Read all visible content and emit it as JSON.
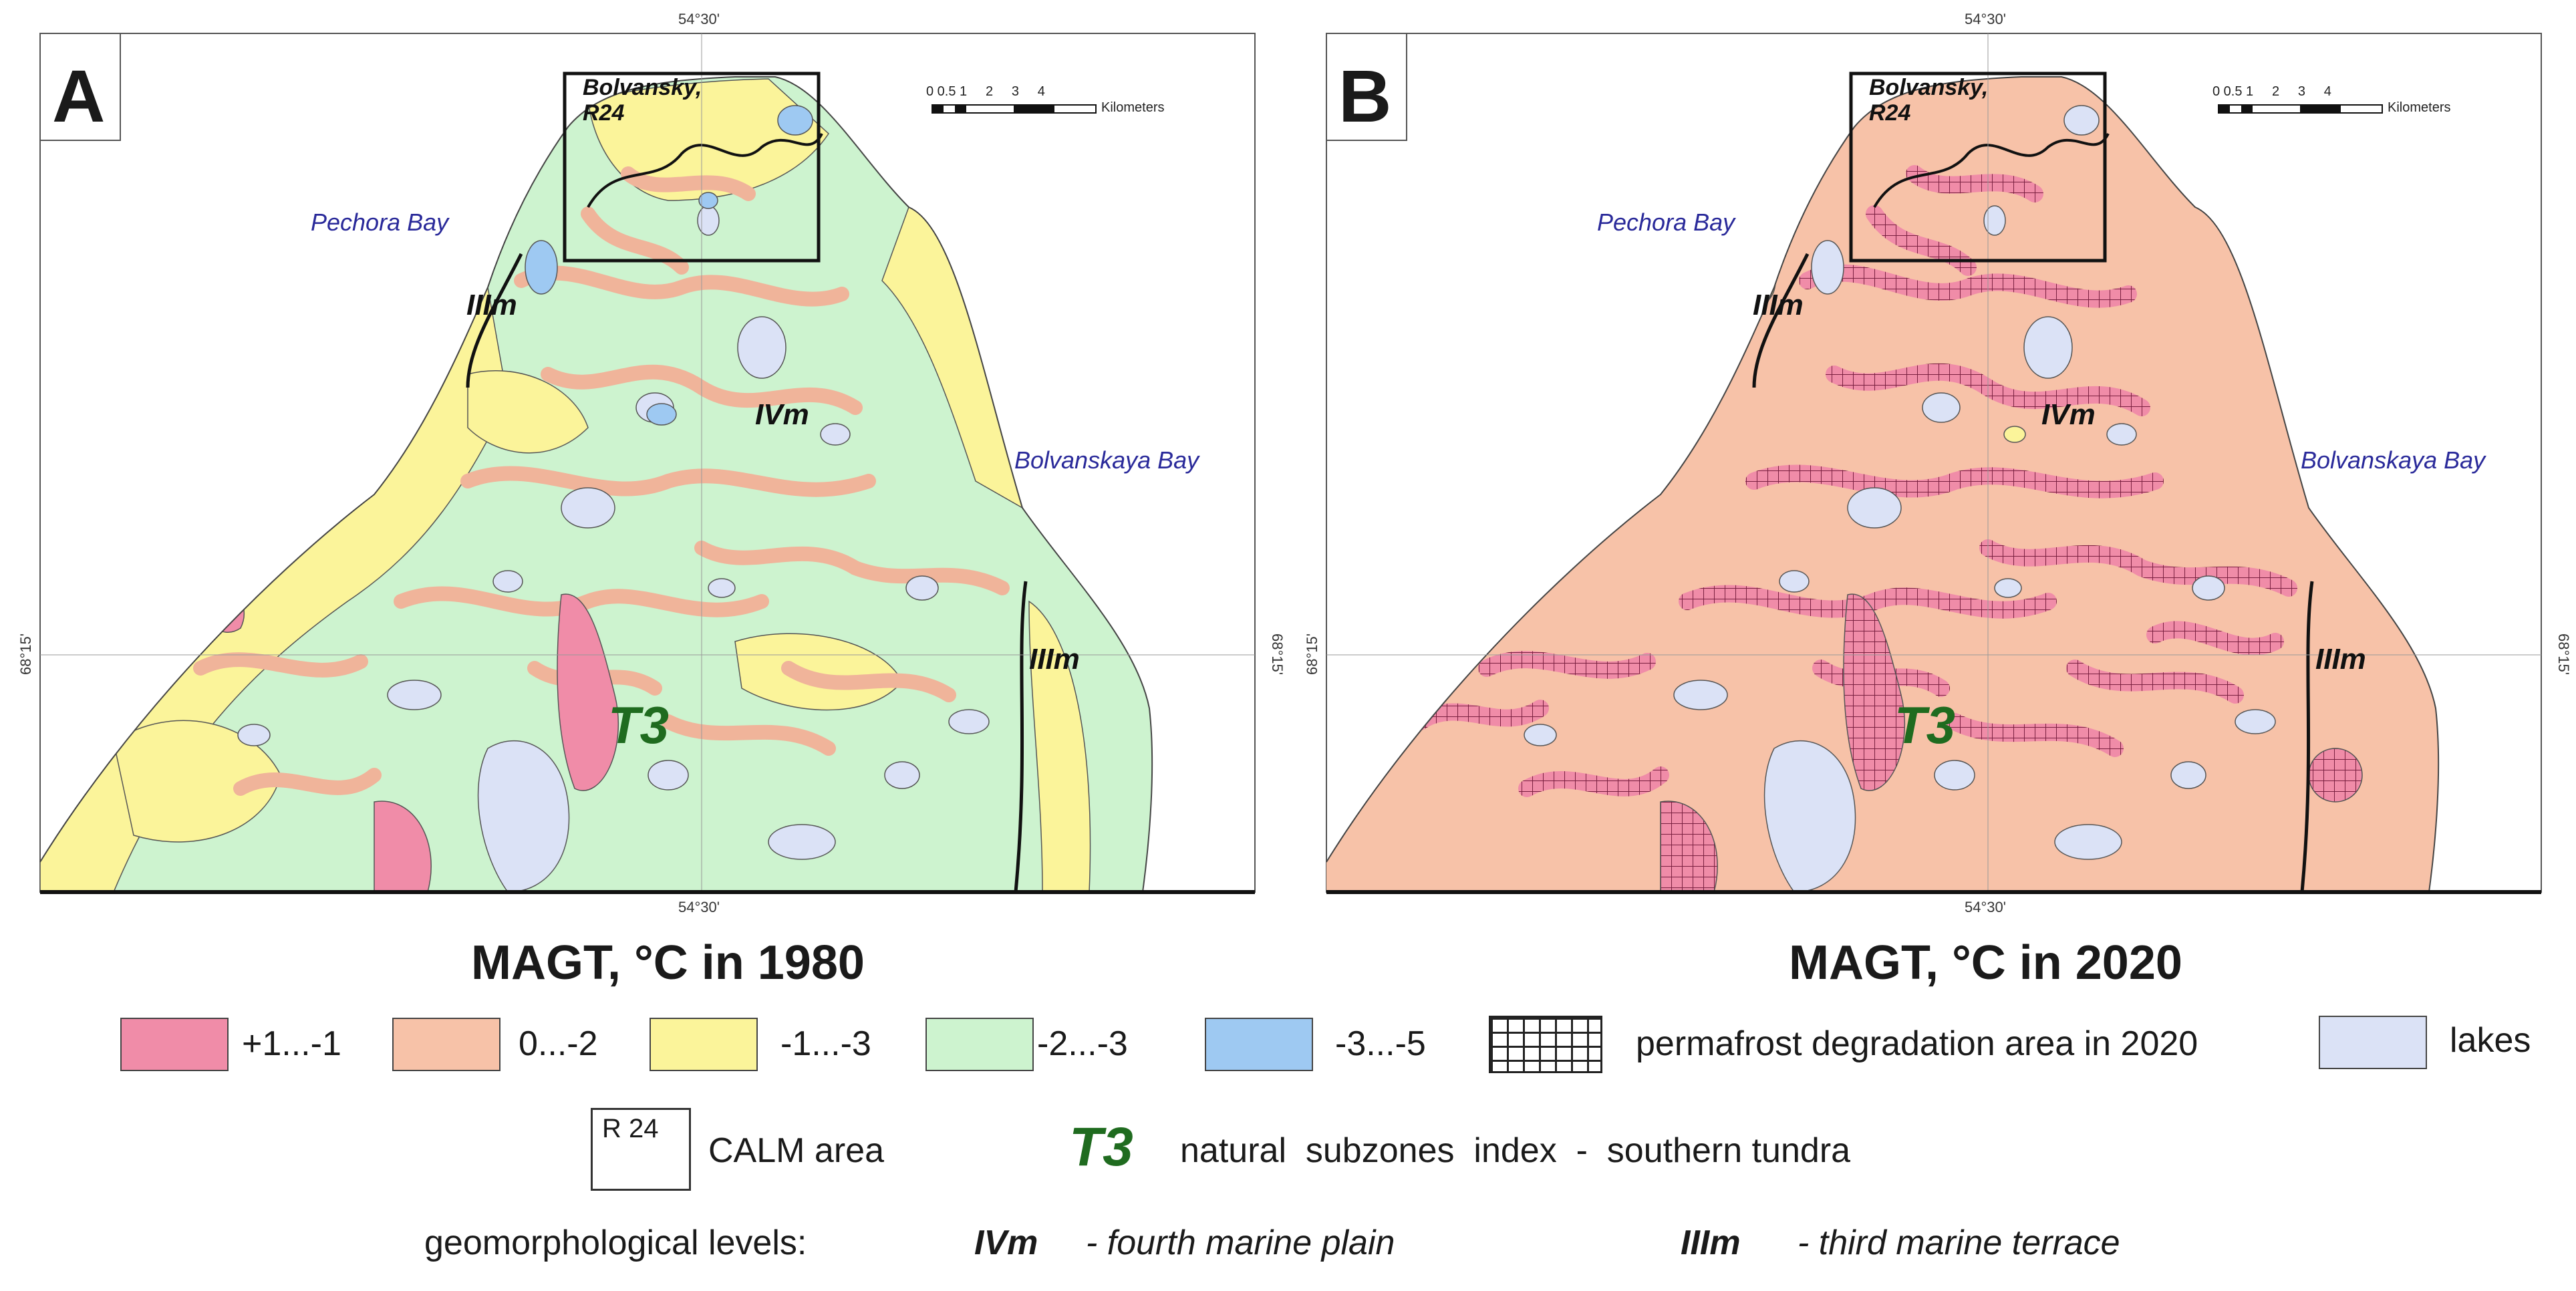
{
  "panels": [
    {
      "letter": "A",
      "title": "MAGT, °C in 1980",
      "coord_top": "54°30'",
      "coord_bottom": "54°30'",
      "coord_left": "68°15'",
      "coord_right": "68°15'",
      "labels": {
        "pechora_bay": "Pechora Bay",
        "bolvanskaya_bay": "Bolvanskaya Bay",
        "ivm": "IVm",
        "iiim_left": "IIIm",
        "iiim_right": "IIIm",
        "t3": "T3",
        "calm": "Bolvansky,\nR24"
      },
      "scale": {
        "ticks": "0 0.5 1     2     3     4",
        "unit": "Kilometers"
      }
    },
    {
      "letter": "B",
      "title": "MAGT, °C in 2020",
      "coord_top": "54°30'",
      "coord_bottom": "54°30'",
      "coord_left": "68°15'",
      "coord_right": "68°15'",
      "labels": {
        "pechora_bay": "Pechora Bay",
        "bolvanskaya_bay": "Bolvanskaya Bay",
        "ivm": "IVm",
        "iiim_left": "IIIm",
        "iiim_right": "IIIm",
        "t3": "T3",
        "calm": "Bolvansky,\nR24"
      },
      "scale": {
        "ticks": "0 0.5 1     2     3     4",
        "unit": "Kilometers"
      }
    }
  ],
  "legend": {
    "classes": [
      {
        "label": "+1...-1",
        "color": "#f08ca8"
      },
      {
        "label": "0...-2",
        "color": "#f7c2a8"
      },
      {
        "label": "-1...-3",
        "color": "#fbf49a"
      },
      {
        "label": "-2...-3",
        "color": "#cdf3cf"
      },
      {
        "label": "-3...-5",
        "color": "#9ec9f2"
      }
    ],
    "degradation": "permafrost degradation area in 2020",
    "lakes": "lakes",
    "lakes_color": "#dbe2f6",
    "calm_box": "R 24",
    "calm_text": "CALM area",
    "t3_symbol": "T3",
    "t3_text": "natural  subzones  index  -  southern tundra",
    "geo_prefix": "geomorphological levels:",
    "geo_ivm": "IVm",
    "geo_ivm_text": "- fourth marine plain",
    "geo_iiim": "IIIm",
    "geo_iiim_text": "- third marine terrace"
  }
}
